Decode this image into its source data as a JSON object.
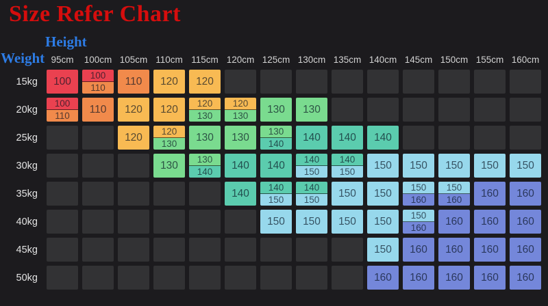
{
  "chart_data": {
    "type": "table",
    "title": "Size Refer Chart",
    "x_axis_label": "Height",
    "y_axis_label": "Weight",
    "columns": [
      "95cm",
      "100cm",
      "105cm",
      "110cm",
      "115cm",
      "120cm",
      "125cm",
      "130cm",
      "135cm",
      "140cm",
      "145cm",
      "150cm",
      "155cm",
      "160cm"
    ],
    "rows": [
      "15kg",
      "20kg",
      "25kg",
      "30kg",
      "35kg",
      "40kg",
      "45kg",
      "50kg"
    ],
    "cells": [
      [
        [
          "100"
        ],
        [
          "100",
          "110"
        ],
        [
          "110"
        ],
        [
          "120"
        ],
        [
          "120"
        ],
        [],
        [],
        [],
        [],
        [],
        [],
        [],
        [],
        []
      ],
      [
        [
          "100",
          "110"
        ],
        [
          "110"
        ],
        [
          "120"
        ],
        [
          "120"
        ],
        [
          "120",
          "130"
        ],
        [
          "120",
          "130"
        ],
        [
          "130"
        ],
        [
          "130"
        ],
        [],
        [],
        [],
        [],
        [],
        []
      ],
      [
        [],
        [],
        [
          "120"
        ],
        [
          "120",
          "130"
        ],
        [
          "130"
        ],
        [
          "130"
        ],
        [
          "130",
          "140"
        ],
        [
          "140"
        ],
        [
          "140"
        ],
        [
          "140"
        ],
        [],
        [],
        [],
        []
      ],
      [
        [],
        [],
        [],
        [
          "130"
        ],
        [
          "130",
          "140"
        ],
        [
          "140"
        ],
        [
          "140"
        ],
        [
          "140",
          "150"
        ],
        [
          "140",
          "150"
        ],
        [
          "150"
        ],
        [
          "150"
        ],
        [
          "150"
        ],
        [
          "150"
        ],
        [
          "150"
        ]
      ],
      [
        [],
        [],
        [],
        [],
        [],
        [
          "140"
        ],
        [
          "140",
          "150"
        ],
        [
          "140",
          "150"
        ],
        [
          "150"
        ],
        [
          "150"
        ],
        [
          "150",
          "160"
        ],
        [
          "150",
          "160"
        ],
        [
          "160"
        ],
        [
          "160"
        ]
      ],
      [
        [],
        [],
        [],
        [],
        [],
        [],
        [
          "150"
        ],
        [
          "150"
        ],
        [
          "150"
        ],
        [
          "150"
        ],
        [
          "150",
          "160"
        ],
        [
          "160"
        ],
        [
          "160"
        ],
        [
          "160"
        ]
      ],
      [
        [],
        [],
        [],
        [],
        [],
        [],
        [],
        [],
        [],
        [
          "150"
        ],
        [
          "160"
        ],
        [
          "160"
        ],
        [
          "160"
        ],
        [
          "160"
        ]
      ],
      [
        [],
        [],
        [],
        [],
        [],
        [],
        [],
        [],
        [],
        [
          "160"
        ],
        [
          "160"
        ],
        [
          "160"
        ],
        [
          "160"
        ],
        [
          "160"
        ]
      ]
    ]
  },
  "size_colors": {
    "100": "#ea4150",
    "110": "#f18a4b",
    "120": "#f8ba53",
    "130": "#7adb8f",
    "140": "#5bccae",
    "150": "#97d8ec",
    "160": "#7487da"
  },
  "theme": {
    "background": "#1c1b1e",
    "empty_cell": "#323234",
    "title_color": "#d60d0d",
    "axis_label_color": "#2d7ce5",
    "header_text_color": "#d2d2d2",
    "row_label_color": "#e3e3e3"
  }
}
